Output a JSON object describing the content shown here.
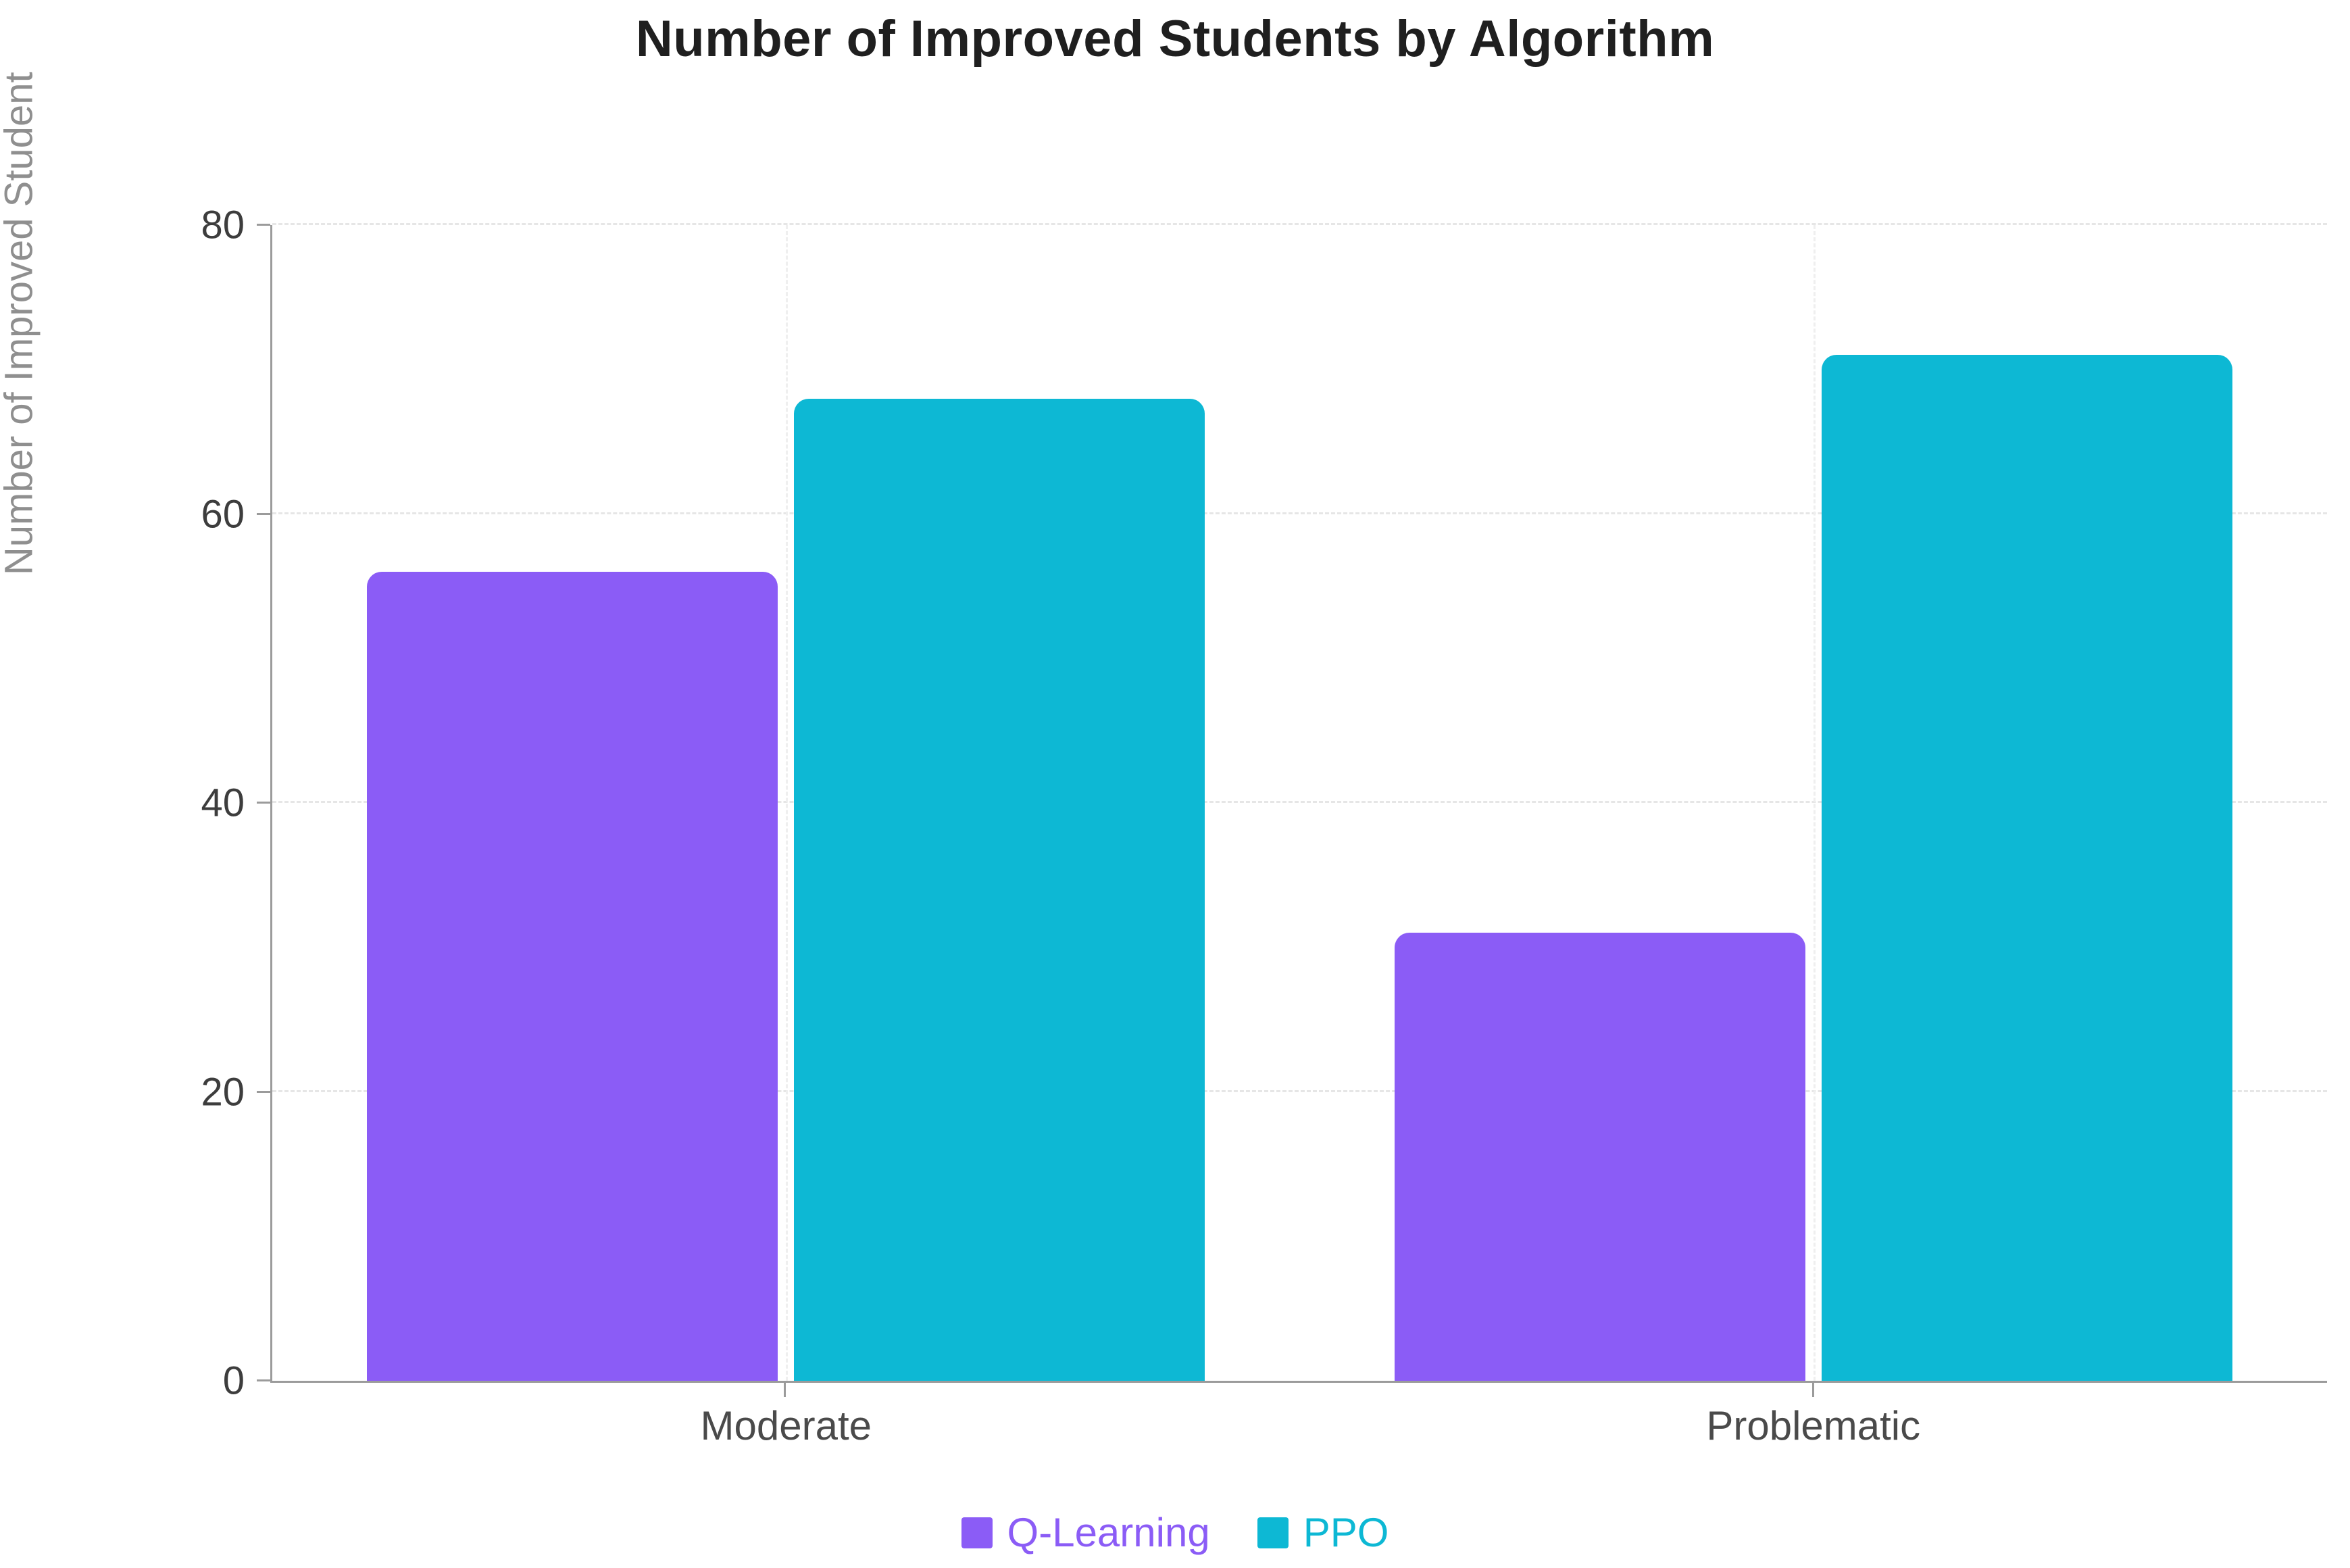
{
  "chart_data": {
    "type": "bar",
    "title": "Number of Improved Students by Algorithm",
    "xlabel": "",
    "ylabel": "Number of Improved Student",
    "categories": [
      "Moderate",
      "Problematic"
    ],
    "series": [
      {
        "name": "Q-Learning",
        "color": "#8B5CF6",
        "values": [
          56,
          31
        ]
      },
      {
        "name": "PPO",
        "color": "#0DB8D4",
        "values": [
          68,
          71
        ]
      }
    ],
    "ylim": [
      0,
      80
    ],
    "yticks": [
      0,
      20,
      40,
      60,
      80
    ],
    "grid": true,
    "grid_style": "dashed",
    "legend_position": "bottom",
    "background_color": "#ffffff",
    "axis_color": "#9b9b9b"
  }
}
